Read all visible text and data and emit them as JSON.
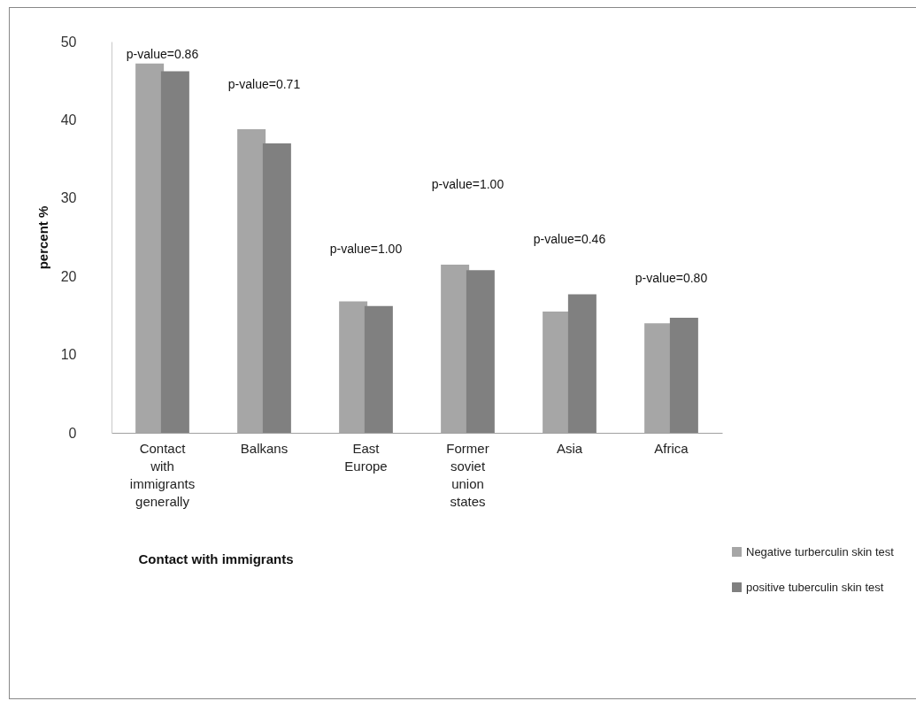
{
  "chart_data": {
    "type": "bar",
    "xlabel": "Contact with immigrants",
    "ylabel": "percent %",
    "categories": [
      "Contact with immigrants generally",
      "Balkans",
      "East Europe",
      "Former soviet union states",
      "Asia",
      "Africa"
    ],
    "series": [
      {
        "name": "Negative turberculin skin test",
        "color": "#a6a6a6",
        "values": [
          47.2,
          38.8,
          16.8,
          21.5,
          15.5,
          14.0
        ]
      },
      {
        "name": "positive tuberculin skin test",
        "color": "#808080",
        "values": [
          46.2,
          37.0,
          16.2,
          20.8,
          17.7,
          14.7
        ]
      }
    ],
    "ylim": [
      0,
      50
    ],
    "yticks": [
      0,
      10,
      20,
      30,
      40,
      50
    ],
    "grid": false,
    "legend": "bottom right",
    "annotations": [
      "p-value=0.86",
      "p-value=0.71",
      "p-value=1.00",
      "p-value=1.00",
      "p-value=0.46",
      "p-value=0.80"
    ]
  }
}
